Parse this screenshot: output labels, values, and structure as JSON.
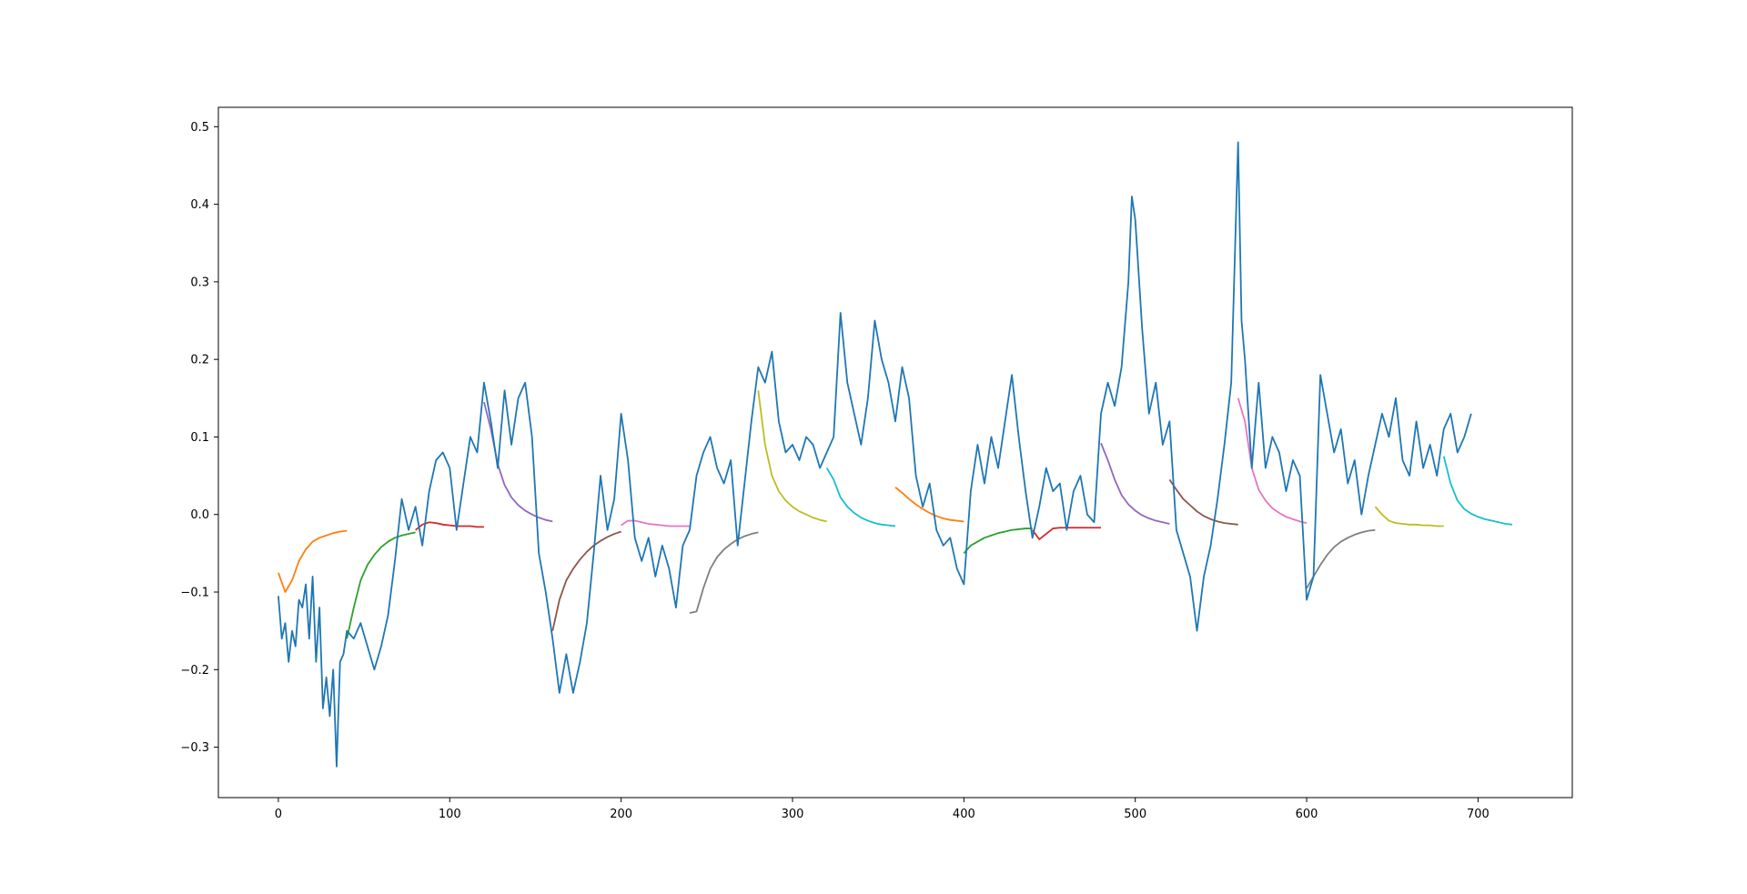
{
  "colors": {
    "main": "#1f77b4",
    "forecast_cycle": [
      "#ff7f0e",
      "#2ca02c",
      "#d62728",
      "#9467bd",
      "#8c564b",
      "#e377c2",
      "#7f7f7f",
      "#bcbd22",
      "#17becf"
    ]
  },
  "chart_data": {
    "type": "line",
    "title": "",
    "xlabel": "",
    "ylabel": "",
    "xlim": [
      -35,
      755
    ],
    "ylim": [
      -0.365,
      0.525
    ],
    "xticks": [
      0,
      100,
      200,
      300,
      400,
      500,
      600,
      700
    ],
    "yticks": [
      -0.3,
      -0.2,
      -0.1,
      0.0,
      0.1,
      0.2,
      0.3,
      0.4,
      0.5
    ],
    "xtick_labels": [
      "0",
      "100",
      "200",
      "300",
      "400",
      "500",
      "600",
      "700"
    ],
    "ytick_labels": [
      "−0.3",
      "−0.2",
      "−0.1",
      "0.0",
      "0.1",
      "0.2",
      "0.3",
      "0.4",
      "0.5"
    ],
    "grid": false,
    "legend": "none",
    "main_series": {
      "x": [
        0,
        2,
        4,
        6,
        8,
        10,
        12,
        14,
        16,
        18,
        20,
        22,
        24,
        26,
        28,
        30,
        32,
        34,
        36,
        38,
        40,
        44,
        48,
        52,
        56,
        60,
        64,
        68,
        72,
        76,
        80,
        84,
        88,
        92,
        96,
        100,
        104,
        108,
        112,
        116,
        120,
        124,
        128,
        132,
        136,
        140,
        144,
        148,
        152,
        156,
        160,
        164,
        168,
        172,
        176,
        180,
        184,
        188,
        192,
        196,
        200,
        204,
        208,
        212,
        216,
        220,
        224,
        228,
        232,
        236,
        240,
        244,
        248,
        252,
        256,
        260,
        264,
        268,
        272,
        276,
        280,
        284,
        288,
        292,
        296,
        300,
        304,
        308,
        312,
        316,
        320,
        324,
        328,
        332,
        336,
        340,
        344,
        348,
        352,
        356,
        360,
        364,
        368,
        372,
        376,
        380,
        384,
        388,
        392,
        396,
        400,
        404,
        408,
        412,
        416,
        420,
        424,
        428,
        432,
        436,
        440,
        444,
        448,
        452,
        456,
        460,
        464,
        468,
        472,
        476,
        480,
        484,
        488,
        492,
        496,
        498,
        500,
        504,
        508,
        512,
        516,
        520,
        524,
        528,
        532,
        536,
        540,
        544,
        548,
        552,
        556,
        560,
        562,
        564,
        568,
        572,
        576,
        580,
        584,
        588,
        592,
        596,
        600,
        604,
        608,
        612,
        616,
        620,
        624,
        628,
        632,
        636,
        640,
        644,
        648,
        652,
        656,
        660,
        664,
        668,
        672,
        676,
        680,
        684,
        688,
        692,
        696
      ],
      "y": [
        -0.105,
        -0.16,
        -0.14,
        -0.19,
        -0.15,
        -0.17,
        -0.11,
        -0.12,
        -0.09,
        -0.16,
        -0.08,
        -0.19,
        -0.12,
        -0.25,
        -0.21,
        -0.26,
        -0.2,
        -0.325,
        -0.19,
        -0.18,
        -0.15,
        -0.16,
        -0.14,
        -0.17,
        -0.2,
        -0.17,
        -0.13,
        -0.06,
        0.02,
        -0.02,
        0.01,
        -0.04,
        0.03,
        0.07,
        0.08,
        0.06,
        -0.02,
        0.04,
        0.1,
        0.08,
        0.17,
        0.12,
        0.06,
        0.16,
        0.09,
        0.15,
        0.17,
        0.1,
        -0.05,
        -0.1,
        -0.16,
        -0.23,
        -0.18,
        -0.23,
        -0.19,
        -0.14,
        -0.05,
        0.05,
        -0.02,
        0.02,
        0.13,
        0.07,
        -0.03,
        -0.06,
        -0.03,
        -0.08,
        -0.04,
        -0.07,
        -0.12,
        -0.04,
        -0.02,
        0.05,
        0.08,
        0.1,
        0.06,
        0.04,
        0.07,
        -0.04,
        0.04,
        0.12,
        0.19,
        0.17,
        0.21,
        0.12,
        0.08,
        0.09,
        0.07,
        0.1,
        0.09,
        0.06,
        0.08,
        0.1,
        0.26,
        0.17,
        0.13,
        0.09,
        0.15,
        0.25,
        0.2,
        0.17,
        0.12,
        0.19,
        0.15,
        0.05,
        0.01,
        0.04,
        -0.02,
        -0.04,
        -0.03,
        -0.07,
        -0.09,
        0.03,
        0.09,
        0.04,
        0.1,
        0.06,
        0.12,
        0.18,
        0.1,
        0.03,
        -0.03,
        0.01,
        0.06,
        0.03,
        0.04,
        -0.02,
        0.03,
        0.05,
        0.0,
        -0.01,
        0.13,
        0.17,
        0.14,
        0.19,
        0.3,
        0.41,
        0.38,
        0.24,
        0.13,
        0.17,
        0.09,
        0.12,
        -0.02,
        -0.05,
        -0.08,
        -0.15,
        -0.08,
        -0.04,
        0.02,
        0.09,
        0.17,
        0.48,
        0.25,
        0.2,
        0.06,
        0.17,
        0.06,
        0.1,
        0.08,
        0.03,
        0.07,
        0.05,
        -0.11,
        -0.08,
        0.18,
        0.13,
        0.08,
        0.11,
        0.04,
        0.07,
        0.0,
        0.05,
        0.09,
        0.13,
        0.1,
        0.15,
        0.07,
        0.05,
        0.12,
        0.06,
        0.09,
        0.05,
        0.11,
        0.13,
        0.08,
        0.1,
        0.13
      ]
    },
    "forecast_series": [
      {
        "x": [
          0,
          4,
          8,
          12,
          16,
          20,
          24,
          28,
          32,
          36,
          40
        ],
        "y": [
          -0.075,
          -0.1,
          -0.085,
          -0.06,
          -0.045,
          -0.035,
          -0.03,
          -0.027,
          -0.024,
          -0.022,
          -0.021
        ]
      },
      {
        "x": [
          40,
          44,
          48,
          52,
          56,
          60,
          64,
          68,
          72,
          76,
          80
        ],
        "y": [
          -0.16,
          -0.12,
          -0.085,
          -0.065,
          -0.052,
          -0.042,
          -0.035,
          -0.03,
          -0.027,
          -0.025,
          -0.023
        ]
      },
      {
        "x": [
          80,
          84,
          88,
          92,
          96,
          100,
          104,
          108,
          112,
          116,
          120
        ],
        "y": [
          -0.02,
          -0.013,
          -0.01,
          -0.011,
          -0.013,
          -0.014,
          -0.015,
          -0.015,
          -0.015,
          -0.016,
          -0.016
        ]
      },
      {
        "x": [
          120,
          124,
          128,
          132,
          136,
          140,
          144,
          148,
          152,
          156,
          160
        ],
        "y": [
          0.145,
          0.11,
          0.065,
          0.038,
          0.022,
          0.012,
          0.005,
          0.0,
          -0.004,
          -0.007,
          -0.009
        ]
      },
      {
        "x": [
          160,
          164,
          168,
          172,
          176,
          180,
          184,
          188,
          192,
          196,
          200
        ],
        "y": [
          -0.15,
          -0.11,
          -0.085,
          -0.07,
          -0.058,
          -0.048,
          -0.04,
          -0.034,
          -0.029,
          -0.025,
          -0.022
        ]
      },
      {
        "x": [
          200,
          204,
          208,
          212,
          216,
          220,
          224,
          228,
          232,
          236,
          240
        ],
        "y": [
          -0.014,
          -0.008,
          -0.008,
          -0.01,
          -0.012,
          -0.013,
          -0.014,
          -0.015,
          -0.015,
          -0.015,
          -0.015
        ]
      },
      {
        "x": [
          240,
          244,
          248,
          252,
          256,
          260,
          264,
          268,
          272,
          276,
          280
        ],
        "y": [
          -0.127,
          -0.125,
          -0.095,
          -0.07,
          -0.055,
          -0.045,
          -0.038,
          -0.032,
          -0.028,
          -0.025,
          -0.023
        ]
      },
      {
        "x": [
          280,
          284,
          288,
          292,
          296,
          300,
          304,
          308,
          312,
          316,
          320
        ],
        "y": [
          0.16,
          0.09,
          0.05,
          0.03,
          0.018,
          0.01,
          0.004,
          0.0,
          -0.004,
          -0.007,
          -0.009
        ]
      },
      {
        "x": [
          320,
          324,
          328,
          332,
          336,
          340,
          344,
          348,
          352,
          356,
          360
        ],
        "y": [
          0.06,
          0.045,
          0.022,
          0.01,
          0.002,
          -0.004,
          -0.008,
          -0.011,
          -0.013,
          -0.014,
          -0.015
        ]
      },
      {
        "x": [
          360,
          364,
          368,
          372,
          376,
          380,
          384,
          388,
          392,
          396,
          400
        ],
        "y": [
          0.035,
          0.028,
          0.02,
          0.013,
          0.007,
          0.002,
          -0.002,
          -0.005,
          -0.007,
          -0.008,
          -0.009
        ]
      },
      {
        "x": [
          400,
          404,
          408,
          412,
          416,
          420,
          424,
          428,
          432,
          436,
          440
        ],
        "y": [
          -0.05,
          -0.04,
          -0.035,
          -0.03,
          -0.027,
          -0.024,
          -0.022,
          -0.02,
          -0.019,
          -0.018,
          -0.018
        ]
      },
      {
        "x": [
          440,
          444,
          448,
          452,
          456,
          460,
          464,
          468,
          472,
          476,
          480
        ],
        "y": [
          -0.02,
          -0.032,
          -0.025,
          -0.018,
          -0.017,
          -0.017,
          -0.017,
          -0.017,
          -0.017,
          -0.017,
          -0.017
        ]
      },
      {
        "x": [
          480,
          484,
          488,
          492,
          496,
          500,
          504,
          508,
          512,
          516,
          520
        ],
        "y": [
          0.092,
          0.07,
          0.045,
          0.025,
          0.013,
          0.005,
          -0.001,
          -0.005,
          -0.008,
          -0.01,
          -0.012
        ]
      },
      {
        "x": [
          520,
          524,
          528,
          532,
          536,
          540,
          544,
          548,
          552,
          556,
          560
        ],
        "y": [
          0.045,
          0.032,
          0.02,
          0.012,
          0.004,
          -0.002,
          -0.006,
          -0.009,
          -0.011,
          -0.012,
          -0.013
        ]
      },
      {
        "x": [
          560,
          564,
          568,
          572,
          576,
          580,
          584,
          588,
          592,
          596,
          600
        ],
        "y": [
          0.15,
          0.12,
          0.06,
          0.032,
          0.018,
          0.008,
          0.002,
          -0.003,
          -0.006,
          -0.009,
          -0.011
        ]
      },
      {
        "x": [
          600,
          604,
          608,
          612,
          616,
          620,
          624,
          628,
          632,
          636,
          640
        ],
        "y": [
          -0.095,
          -0.08,
          -0.065,
          -0.052,
          -0.042,
          -0.035,
          -0.03,
          -0.026,
          -0.023,
          -0.021,
          -0.02
        ]
      },
      {
        "x": [
          640,
          644,
          648,
          652,
          656,
          660,
          664,
          668,
          672,
          676,
          680
        ],
        "y": [
          0.01,
          0.0,
          -0.008,
          -0.011,
          -0.012,
          -0.013,
          -0.013,
          -0.014,
          -0.014,
          -0.015,
          -0.015
        ]
      },
      {
        "x": [
          680,
          684,
          688,
          692,
          696,
          700,
          704,
          708,
          712,
          716,
          720
        ],
        "y": [
          0.075,
          0.04,
          0.018,
          0.007,
          0.001,
          -0.003,
          -0.006,
          -0.008,
          -0.01,
          -0.012,
          -0.013
        ]
      }
    ]
  }
}
